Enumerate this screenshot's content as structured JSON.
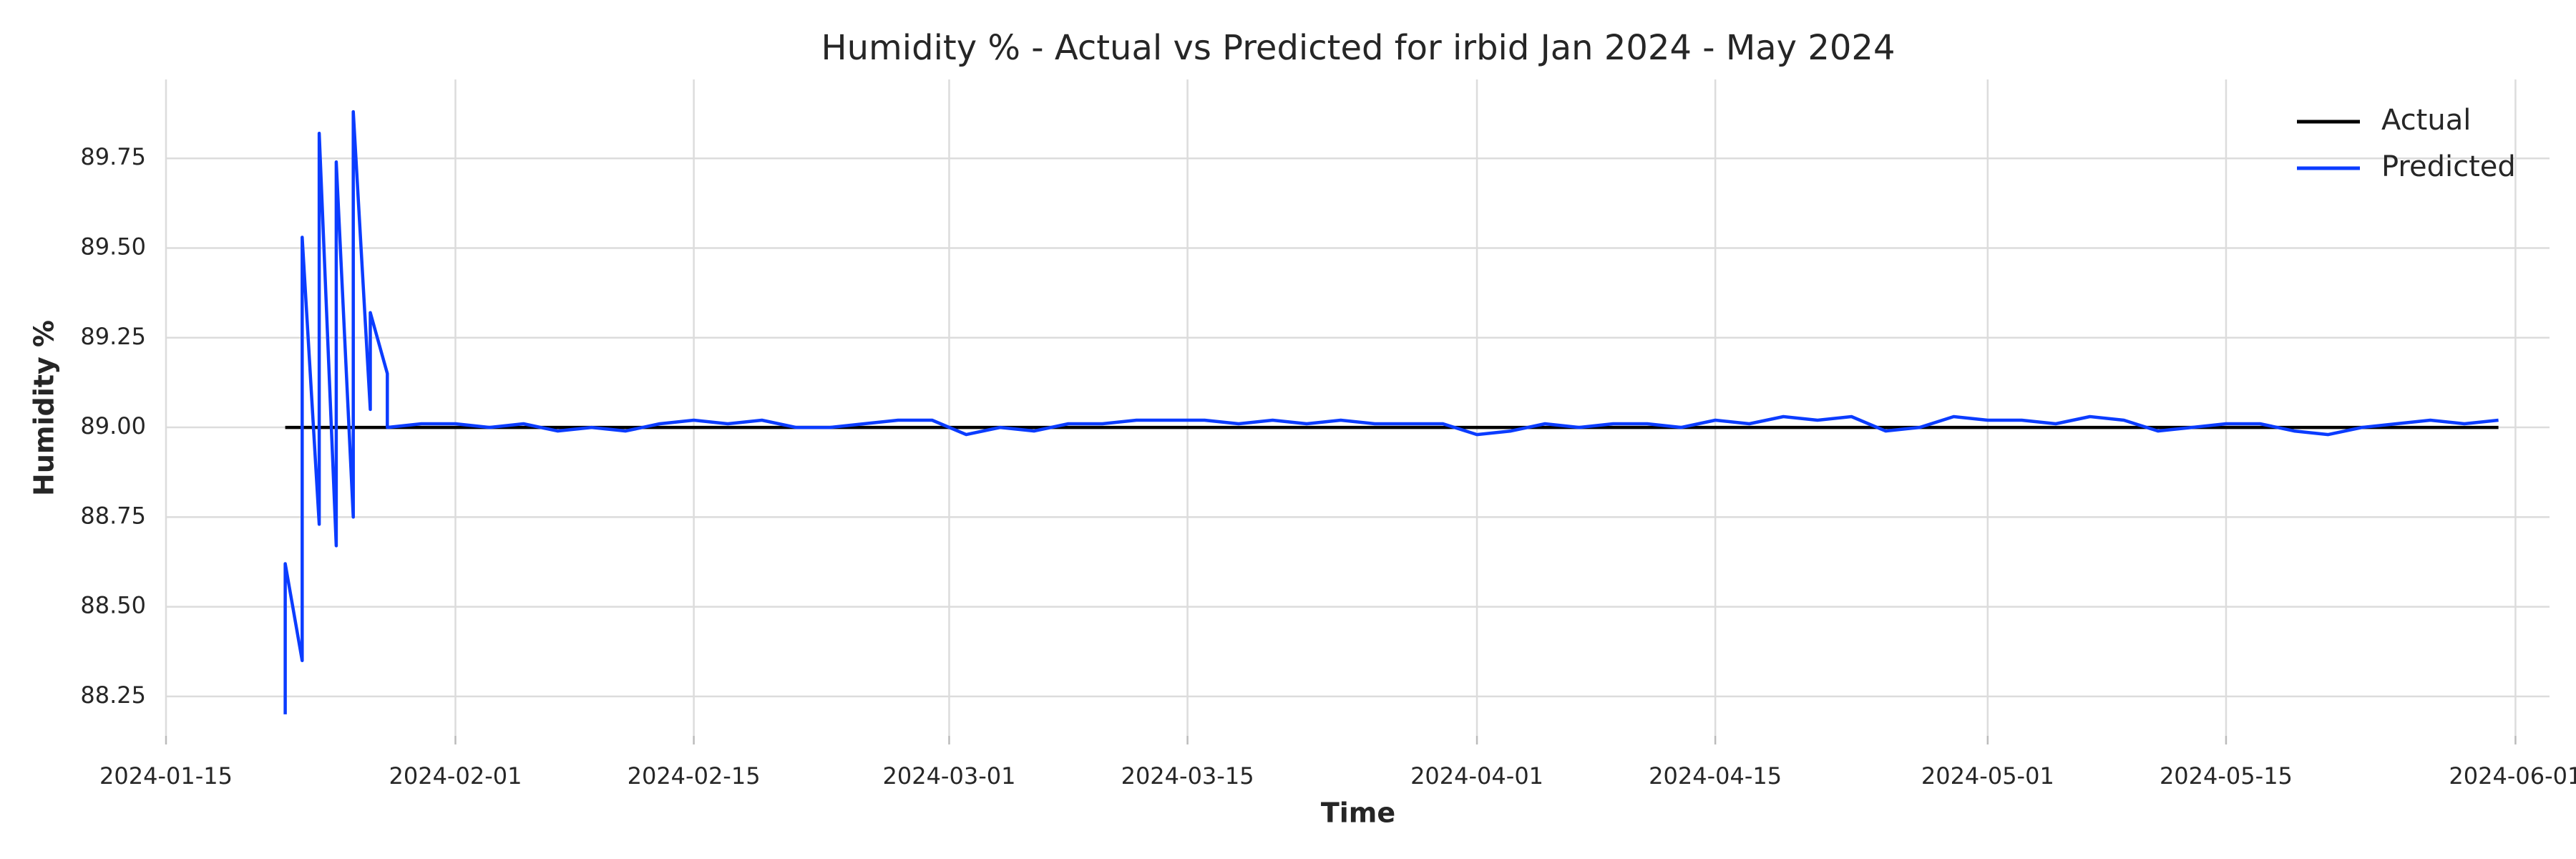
{
  "chart_data": {
    "type": "line",
    "title": "Humidity % - Actual vs Predicted for irbid Jan 2024 - May 2024",
    "x_label": "Time",
    "y_label": "Humidity %",
    "xlim": [
      "2024-01-15",
      "2024-06-03"
    ],
    "xticks": [
      "2024-01-15",
      "2024-02-01",
      "2024-02-15",
      "2024-03-01",
      "2024-03-15",
      "2024-04-01",
      "2024-04-15",
      "2024-05-01",
      "2024-05-15",
      "2024-06-01"
    ],
    "ylim": [
      88.14,
      89.97
    ],
    "yticks": [
      88.25,
      {
        "value": 88.5,
        "label": "88.50"
      },
      88.75,
      {
        "value": 89.0,
        "label": "89.00"
      },
      89.25,
      {
        "value": 89.5,
        "label": "89.50"
      },
      89.75
    ],
    "grid": true,
    "legend": "upper right",
    "series": [
      {
        "name": "Actual",
        "color": "#000000",
        "x": [
          "2024-01-22",
          "2024-05-31"
        ],
        "values": [
          89.0,
          89.0
        ]
      },
      {
        "name": "Predicted",
        "color": "#0b3cff",
        "x": [
          "2024-01-22",
          "2024-01-22",
          "2024-01-23",
          "2024-01-23",
          "2024-01-24",
          "2024-01-24",
          "2024-01-25",
          "2024-01-25",
          "2024-01-26",
          "2024-01-26",
          "2024-01-27",
          "2024-01-27",
          "2024-01-28",
          "2024-01-28",
          "2024-01-30",
          "2024-02-01",
          "2024-02-03",
          "2024-02-05",
          "2024-02-07",
          "2024-02-09",
          "2024-02-11",
          "2024-02-13",
          "2024-02-15",
          "2024-02-17",
          "2024-02-19",
          "2024-02-21",
          "2024-02-23",
          "2024-02-25",
          "2024-02-27",
          "2024-02-29",
          "2024-03-02",
          "2024-03-04",
          "2024-03-06",
          "2024-03-08",
          "2024-03-10",
          "2024-03-12",
          "2024-03-14",
          "2024-03-16",
          "2024-03-18",
          "2024-03-20",
          "2024-03-22",
          "2024-03-24",
          "2024-03-26",
          "2024-03-28",
          "2024-03-30",
          "2024-04-01",
          "2024-04-03",
          "2024-04-05",
          "2024-04-07",
          "2024-04-09",
          "2024-04-11",
          "2024-04-13",
          "2024-04-15",
          "2024-04-17",
          "2024-04-19",
          "2024-04-21",
          "2024-04-23",
          "2024-04-25",
          "2024-04-27",
          "2024-04-29",
          "2024-05-01",
          "2024-05-03",
          "2024-05-05",
          "2024-05-07",
          "2024-05-09",
          "2024-05-11",
          "2024-05-13",
          "2024-05-15",
          "2024-05-17",
          "2024-05-19",
          "2024-05-21",
          "2024-05-23",
          "2024-05-25",
          "2024-05-27",
          "2024-05-29",
          "2024-05-31"
        ],
        "values": [
          88.2,
          88.62,
          88.35,
          89.53,
          88.73,
          89.82,
          88.67,
          89.74,
          88.75,
          89.88,
          89.05,
          89.32,
          89.15,
          89.0,
          89.01,
          89.01,
          89.0,
          89.01,
          88.99,
          89.0,
          88.99,
          89.01,
          89.02,
          89.01,
          89.02,
          89.0,
          89.0,
          89.01,
          89.02,
          89.02,
          88.98,
          89.0,
          88.99,
          89.01,
          89.01,
          89.02,
          89.02,
          89.02,
          89.01,
          89.02,
          89.01,
          89.02,
          89.01,
          89.01,
          89.01,
          88.98,
          88.99,
          89.01,
          89.0,
          89.01,
          89.01,
          89.0,
          89.02,
          89.01,
          89.03,
          89.02,
          89.03,
          88.99,
          89.0,
          89.03,
          89.02,
          89.02,
          89.01,
          89.03,
          89.02,
          88.99,
          89.0,
          89.01,
          89.01,
          88.99,
          88.98,
          89.0,
          89.01,
          89.02,
          89.01,
          89.02
        ]
      }
    ]
  }
}
